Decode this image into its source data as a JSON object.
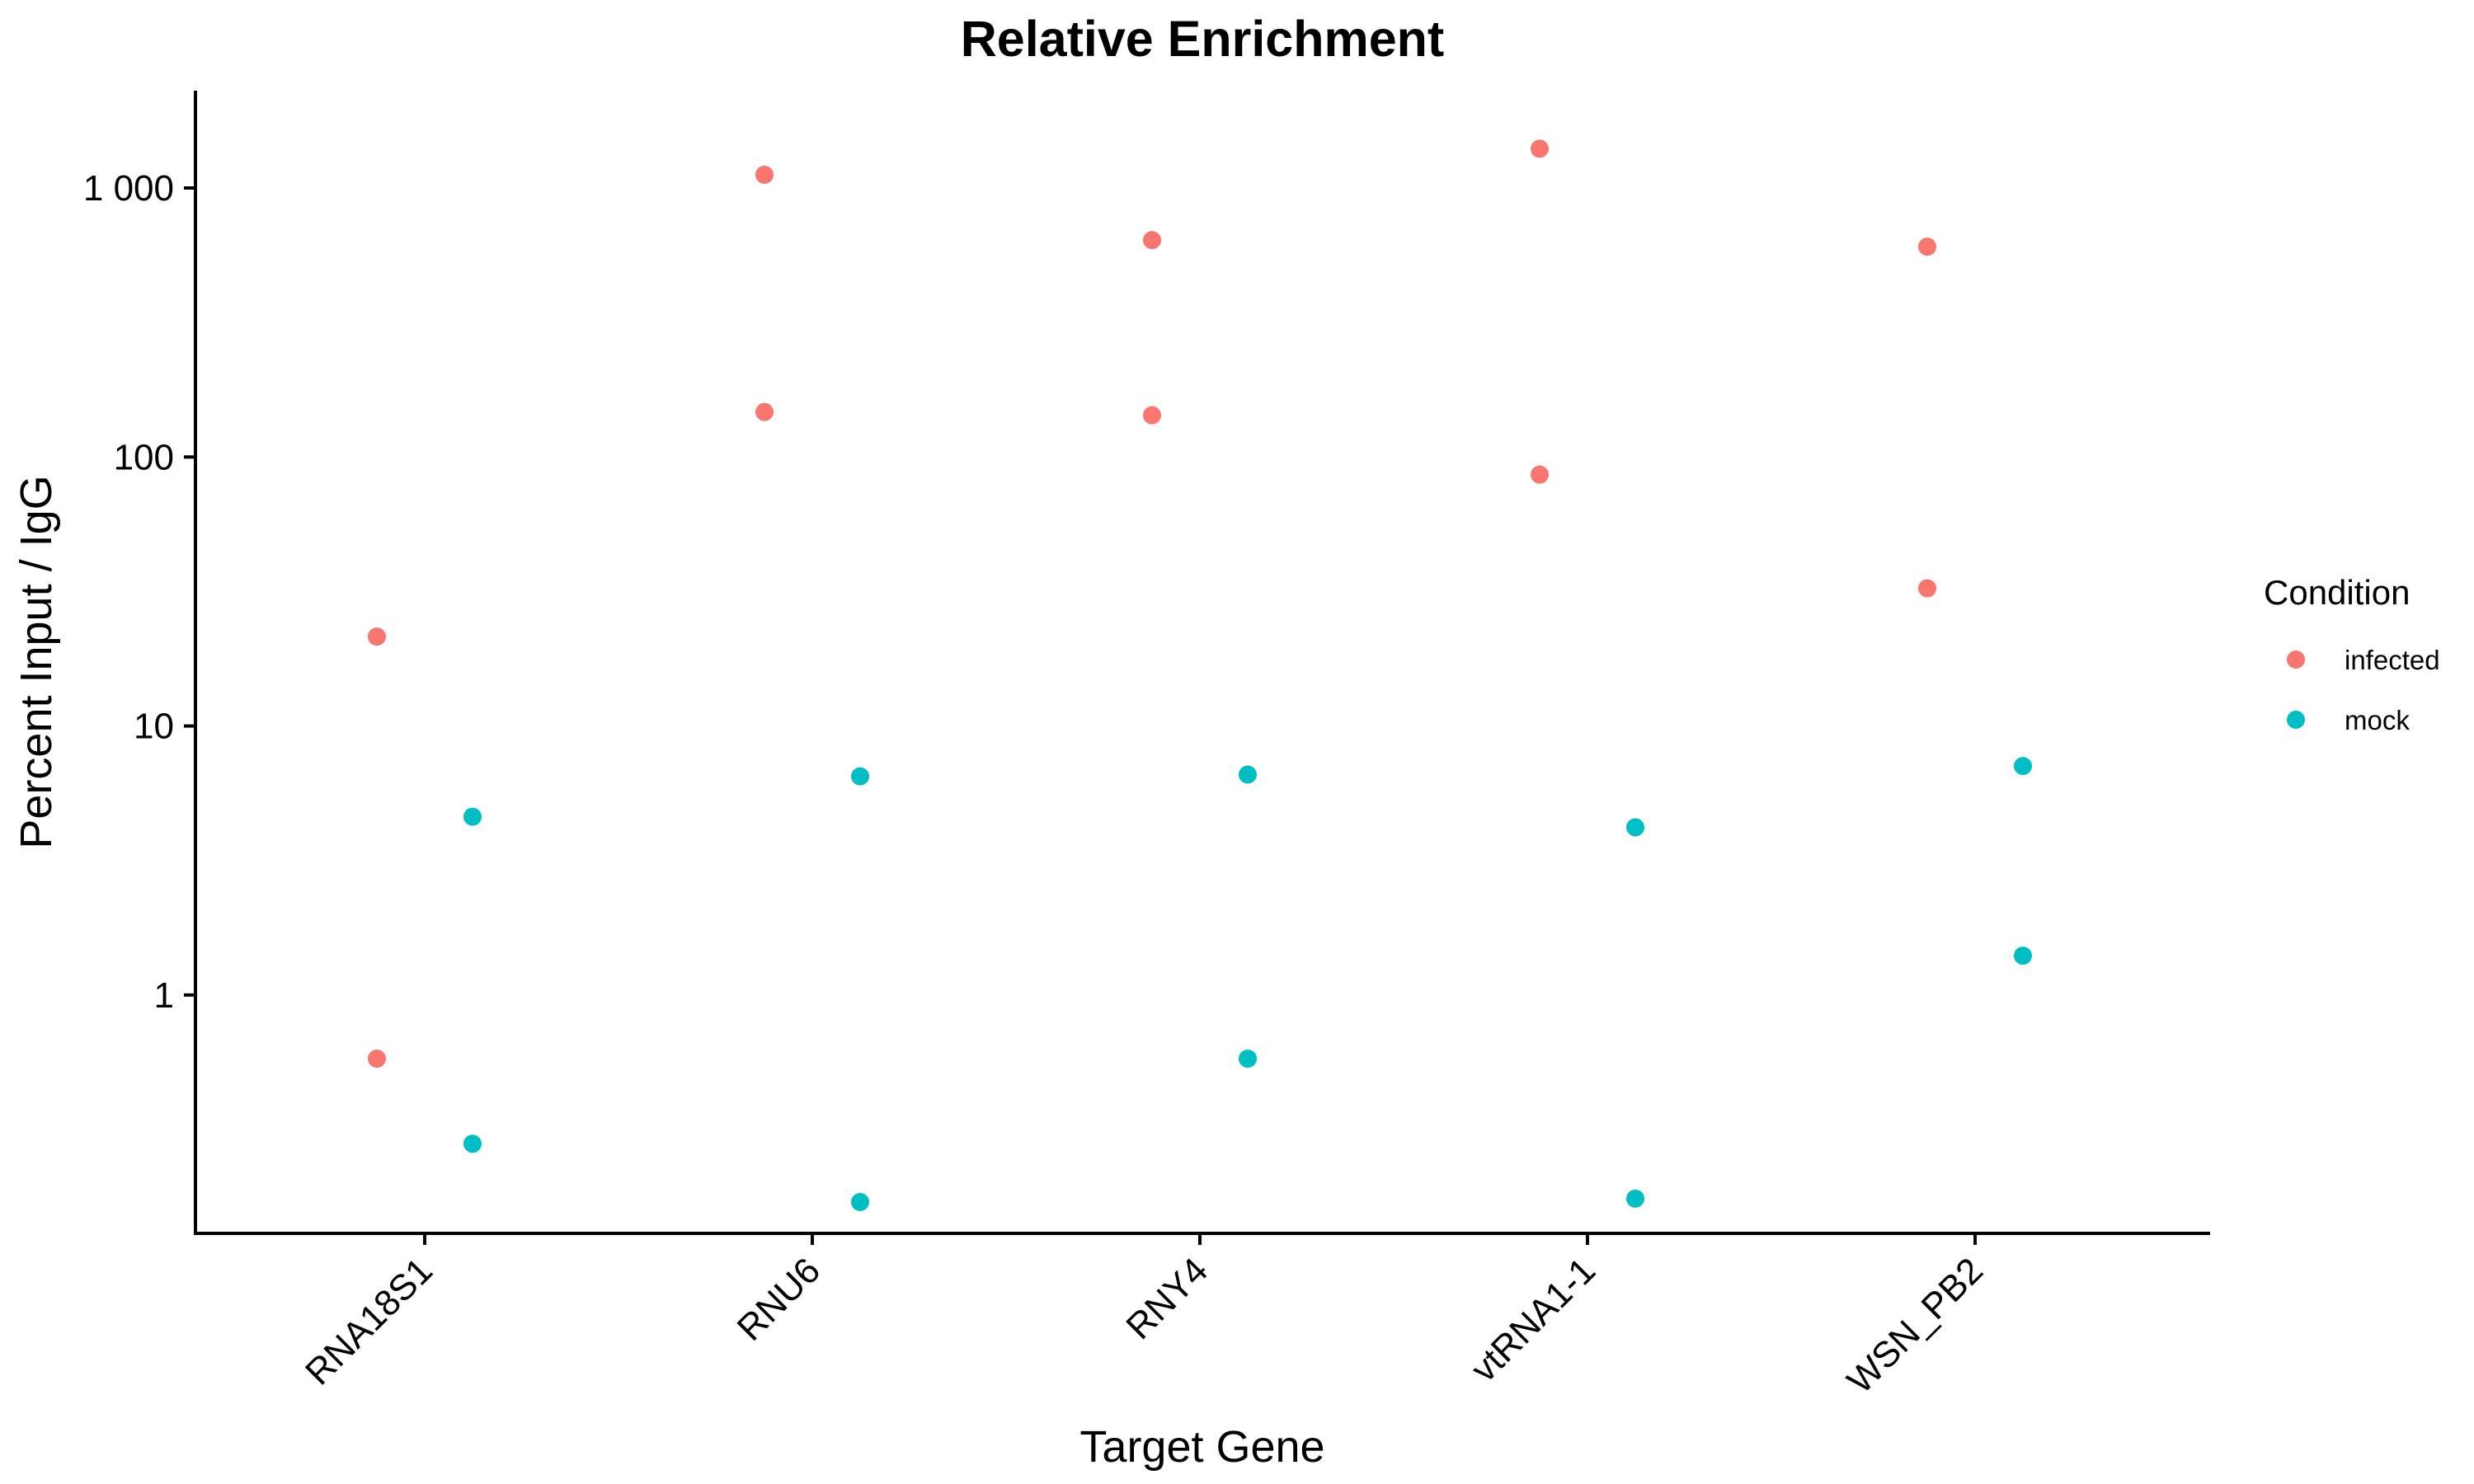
{
  "chart_data": {
    "type": "scatter",
    "title": "Relative Enrichment",
    "xlabel": "Target Gene",
    "ylabel": "Percent Input / IgG",
    "y_scale": "log10",
    "ylim": [
      0.13,
      2300
    ],
    "y_ticks": [
      {
        "value": 1,
        "label": "1"
      },
      {
        "value": 10,
        "label": "10"
      },
      {
        "value": 100,
        "label": "100"
      },
      {
        "value": 1000,
        "label": "1 000"
      }
    ],
    "categories": [
      "RNA18S1",
      "RNU6",
      "RNY4",
      "vtRNA1-1",
      "WSN_PB2"
    ],
    "grid": false,
    "legend": {
      "title": "Condition",
      "position": "right"
    },
    "series": [
      {
        "name": "infected",
        "color": "#F8766D",
        "points": [
          {
            "x": "RNA18S1",
            "y": 21.5
          },
          {
            "x": "RNA18S1",
            "y": 0.58
          },
          {
            "x": "RNU6",
            "y": 1120
          },
          {
            "x": "RNU6",
            "y": 147
          },
          {
            "x": "RNY4",
            "y": 640
          },
          {
            "x": "RNY4",
            "y": 143
          },
          {
            "x": "vtRNA1-1",
            "y": 1400
          },
          {
            "x": "vtRNA1-1",
            "y": 86
          },
          {
            "x": "WSN_PB2",
            "y": 605
          },
          {
            "x": "WSN_PB2",
            "y": 32.5
          }
        ]
      },
      {
        "name": "mock",
        "color": "#00BFC4",
        "points": [
          {
            "x": "RNA18S1",
            "y": 4.6
          },
          {
            "x": "RNA18S1",
            "y": 0.28
          },
          {
            "x": "RNU6",
            "y": 6.5
          },
          {
            "x": "RNU6",
            "y": 0.17
          },
          {
            "x": "RNY4",
            "y": 6.6
          },
          {
            "x": "RNY4",
            "y": 0.58
          },
          {
            "x": "vtRNA1-1",
            "y": 4.2
          },
          {
            "x": "vtRNA1-1",
            "y": 0.175
          },
          {
            "x": "WSN_PB2",
            "y": 7.1
          },
          {
            "x": "WSN_PB2",
            "y": 1.4
          }
        ]
      }
    ]
  }
}
